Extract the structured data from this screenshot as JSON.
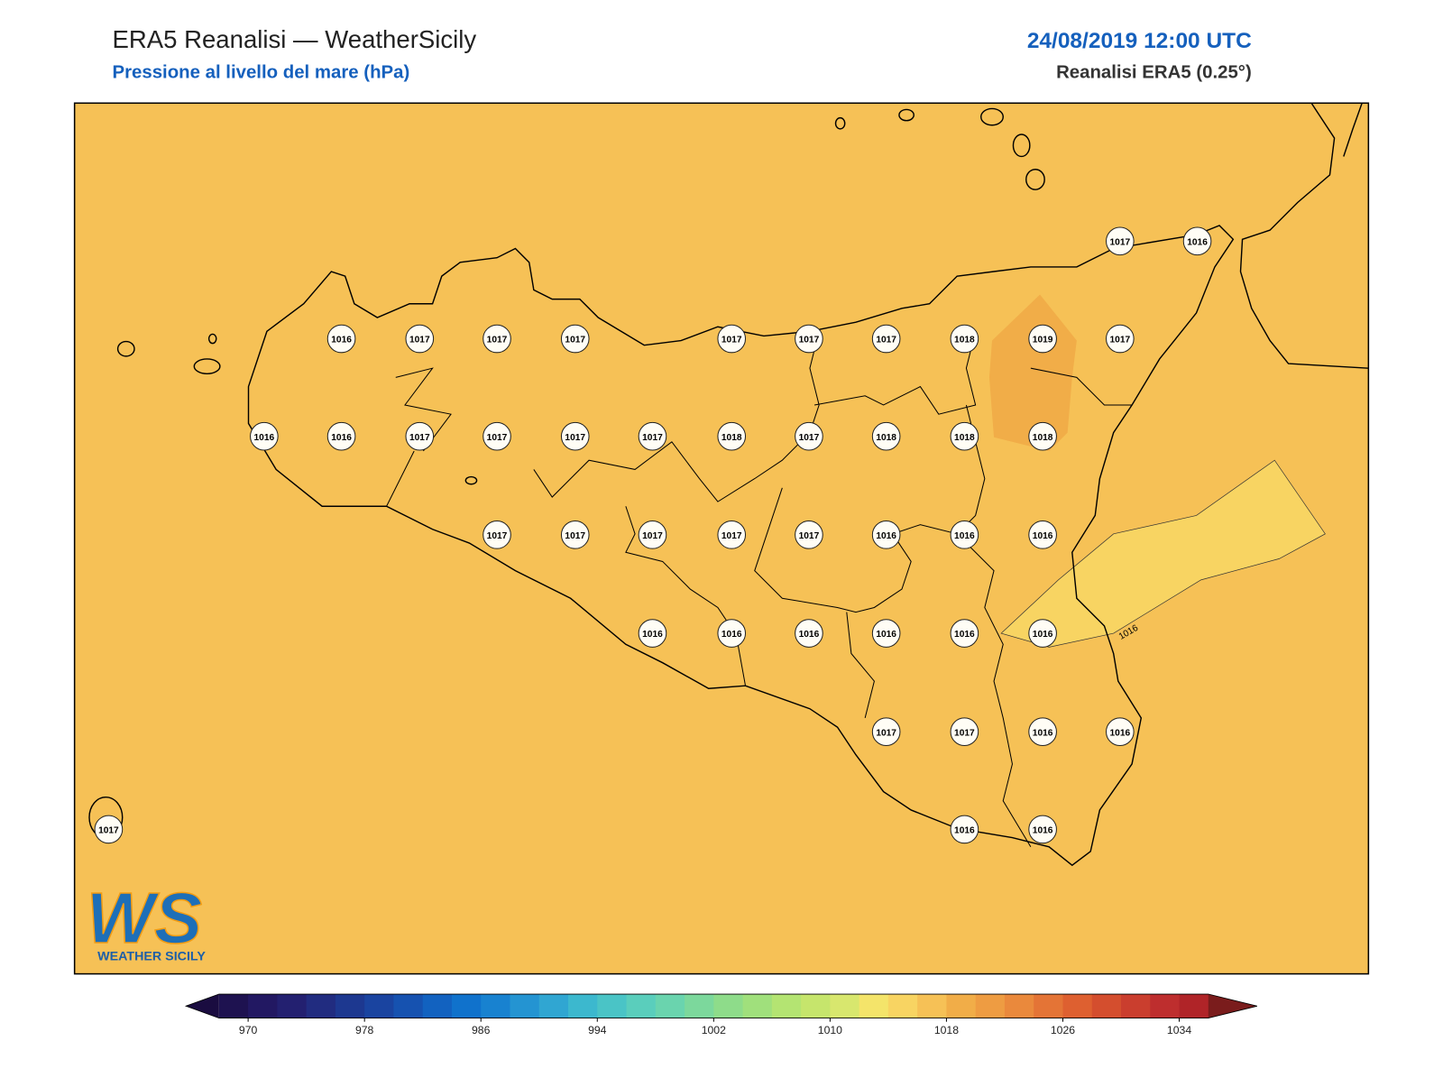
{
  "header": {
    "title": "ERA5 Reanalisi — WeatherSicily",
    "subtitle": "Pressione al livello del mare (hPa)",
    "date": "24/08/2019 12:00 UTC",
    "source": "Reanalisi ERA5 (0.25°)"
  },
  "map": {
    "stations": [
      1017,
      1016,
      1016,
      1017,
      1017,
      1017,
      1017,
      1017,
      1017,
      1018,
      1019,
      1017,
      1016,
      1016,
      1017,
      1017,
      1017,
      1017,
      1018,
      1017,
      1018,
      1018,
      1018,
      1017,
      1017,
      1017,
      1017,
      1017,
      1016,
      1016,
      1016,
      1016,
      1016,
      1016,
      1016,
      1016,
      1016,
      1017,
      1017,
      1016,
      1016,
      1017,
      1016,
      1016
    ],
    "contour_label": 1016
  },
  "logo": {
    "mark": "WS",
    "name": "WEATHER SICILY"
  },
  "colorbar": {
    "clim": [
      968,
      1036
    ],
    "ticks": [
      970,
      978,
      986,
      994,
      1002,
      1010,
      1018,
      1026,
      1034
    ],
    "colors": [
      "#1e1250",
      "#221862",
      "#232070",
      "#212c80",
      "#1d3890",
      "#1a44a0",
      "#1652b0",
      "#1262c0",
      "#1072cc",
      "#1882d0",
      "#2494d2",
      "#30a6d2",
      "#3cb8ce",
      "#4ac4c6",
      "#5acebc",
      "#6ad4ae",
      "#7cd89c",
      "#8edc8a",
      "#a0e07c",
      "#b4e472",
      "#c6e56c",
      "#d8e76e",
      "#f4e46a",
      "#f8d462",
      "#f6c156",
      "#f1ad48",
      "#ee9c42",
      "#ea893c",
      "#e47436",
      "#de6030",
      "#d44e2e",
      "#ca3e2e",
      "#be2e2e",
      "#b02428"
    ],
    "under": "#1a0c40",
    "over": "#7a1c1c"
  }
}
